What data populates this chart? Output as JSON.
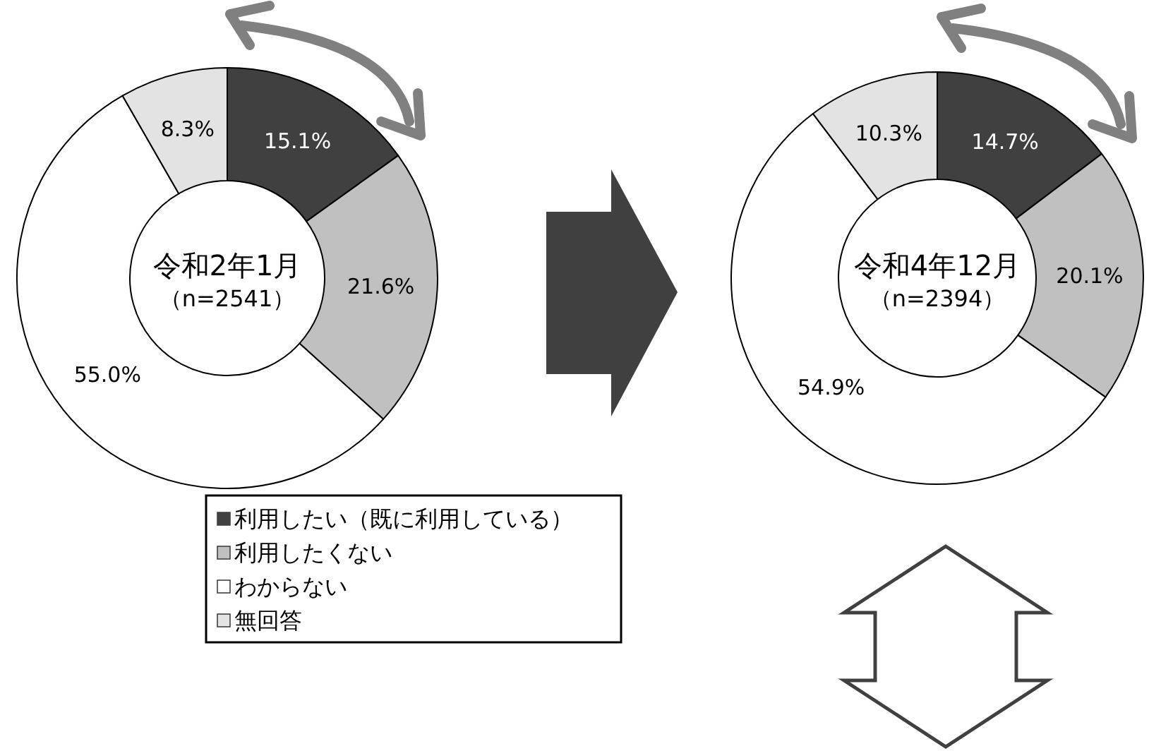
{
  "chart_data": [
    {
      "type": "donut",
      "title": "令和2年1月",
      "subtitle": "（n=2541）",
      "categories": [
        "利用したい（既に利用している）",
        "利用したくない",
        "わからない",
        "無回答"
      ],
      "values": [
        15.1,
        21.6,
        55.0,
        8.3
      ],
      "value_labels": [
        "15.1%",
        "21.6%",
        "55.0%",
        "8.3%"
      ],
      "colors": [
        "#404040",
        "#c0c0c0",
        "#ffffff",
        "#e3e3e3"
      ],
      "legend": "bottom"
    },
    {
      "type": "donut",
      "title": "令和4年12月",
      "subtitle": "（n=2394）",
      "categories": [
        null,
        null,
        null,
        null
      ],
      "values": [
        14.7,
        20.1,
        54.9,
        10.3
      ],
      "value_labels": [
        "14.7%",
        "20.1%",
        "54.9%",
        "10.3%"
      ],
      "colors": [
        "#404040",
        "#c0c0c0",
        "#ffffff",
        "#e3e3e3"
      ],
      "legend": false
    }
  ]
}
